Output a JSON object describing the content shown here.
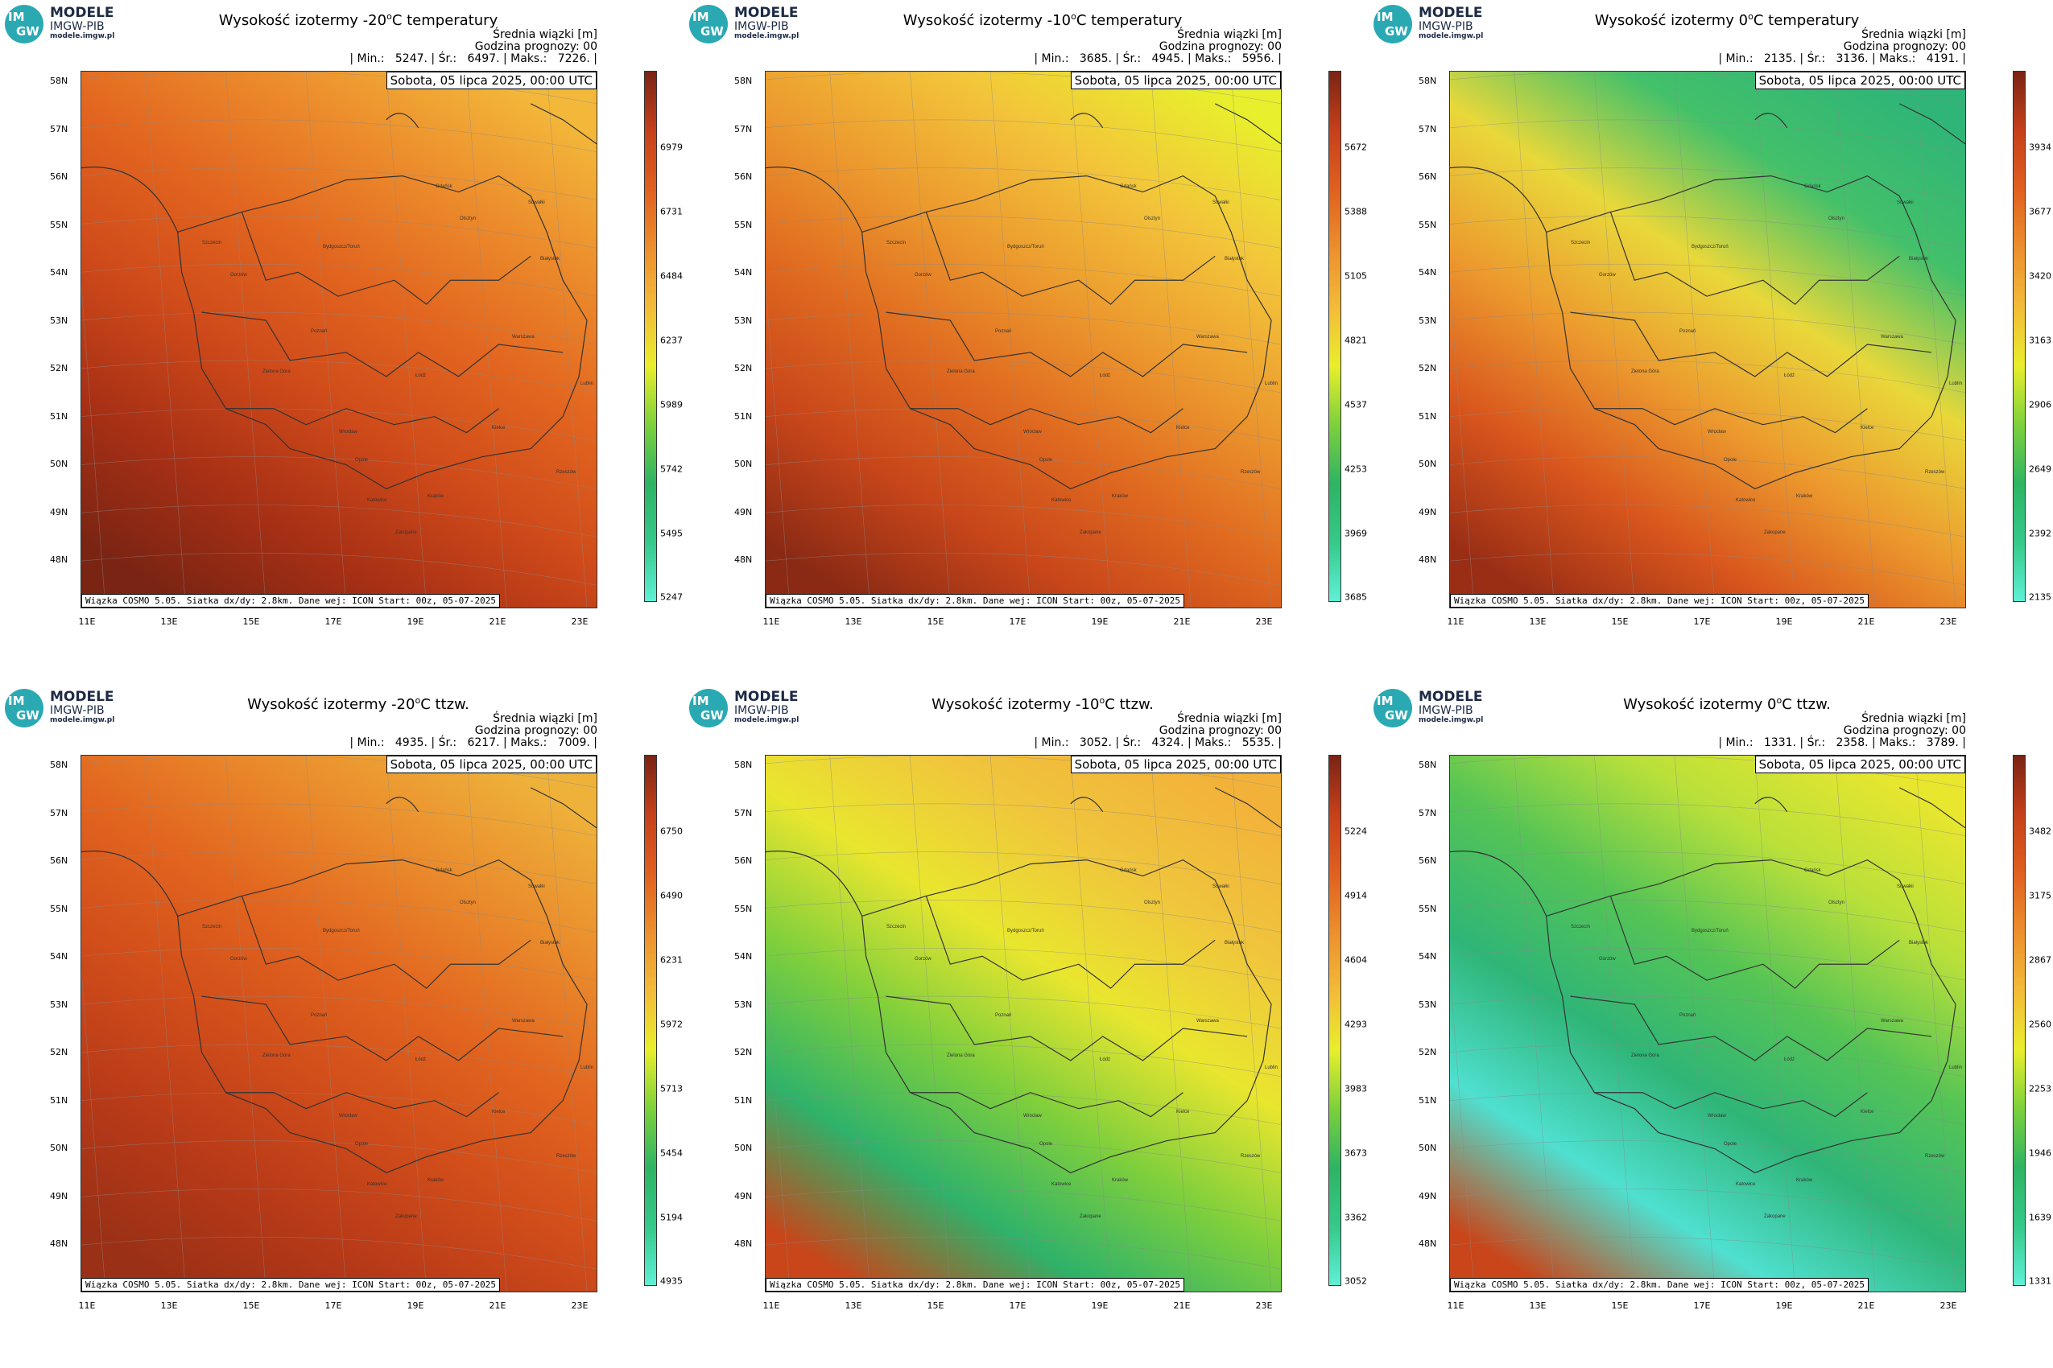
{
  "logo": {
    "circle_top": "IM",
    "circle_bottom": "GW",
    "line1": "MODELE",
    "line2": "IMGW-PIB",
    "line3": "modele.imgw.pl"
  },
  "common": {
    "mean_label": "Średnia wiązki [m]",
    "forecast_label": "Godzina prognozy: 00",
    "date": "Sobota, 05 lipca 2025, 00:00 UTC",
    "footer": "Wiązka COSMO 5.05. Siatka dx/dy: 2.8km. Dane wej: ICON Start: 00z, 05-07-2025",
    "lat_labels": [
      "58N",
      "57N",
      "56N",
      "55N",
      "54N",
      "53N",
      "52N",
      "51N",
      "50N",
      "49N",
      "48N"
    ],
    "lon_labels": [
      "11E",
      "13E",
      "15E",
      "17E",
      "19E",
      "21E",
      "23E"
    ],
    "cities": [
      "Gdańsk",
      "Olsztyn",
      "Suwałki",
      "Szczecin",
      "Bydgoszcz/Toruń",
      "Białystok",
      "Gorzów",
      "Poznań",
      "Warszawa",
      "Zielona Góra",
      "Łódź",
      "Lublin",
      "Wrocław",
      "Kielce",
      "Opole",
      "Katowice",
      "Kraków",
      "Rzeszów",
      "Zakopane"
    ]
  },
  "panels": [
    {
      "title_pre": "Wysokość izotermy -20",
      "title_sup": "o",
      "title_post": "C temperatury",
      "stats": "| Min.:   5247. | Śr.:   6497. | Maks.:   7226. |",
      "ticks": [
        "6979",
        "6731",
        "6484",
        "6237",
        "5989",
        "5742",
        "5495",
        "5247"
      ],
      "scheme": "warm",
      "colors": [
        "#f3b83a",
        "#ec8c2c",
        "#e2651f",
        "#cf4a1a",
        "#a83015",
        "#7a2414"
      ]
    },
    {
      "title_pre": "Wysokość izotermy -10",
      "title_sup": "o",
      "title_post": "C temperatury",
      "stats": "| Min.:   3685. | Śr.:   4945. | Maks.:   5956. |",
      "ticks": [
        "5672",
        "5388",
        "5105",
        "4821",
        "4537",
        "4253",
        "3969",
        "3685"
      ],
      "scheme": "mid",
      "colors": [
        "#e8ef2c",
        "#f3c43a",
        "#ec9a2e",
        "#e06a20",
        "#c8461a",
        "#8a2a14"
      ]
    },
    {
      "title_pre": "Wysokość izotermy 0",
      "title_sup": "o",
      "title_post": "C temperatury",
      "stats": "| Min.:   2135. | Śr.:   3136. | Maks.:   4191. |",
      "ticks": [
        "3934",
        "3677",
        "3420",
        "3163",
        "2906",
        "2649",
        "2392",
        "2135"
      ],
      "scheme": "cool",
      "colors": [
        "#2fb577",
        "#43c06a",
        "#e9d83a",
        "#ec9a2e",
        "#d9561d",
        "#9a2e15"
      ]
    },
    {
      "title_pre": "Wysokość izotermy -20",
      "title_sup": "o",
      "title_post": "C ttzw.",
      "stats": "| Min.:   4935. | Śr.:   6217. | Maks.:   7009. |",
      "ticks": [
        "6750",
        "6490",
        "6231",
        "5972",
        "5713",
        "5454",
        "5194",
        "4935"
      ],
      "scheme": "warm2",
      "colors": [
        "#eeb23a",
        "#ea8c2c",
        "#e2651f",
        "#d14d1a",
        "#b83a18",
        "#9a3016"
      ]
    },
    {
      "title_pre": "Wysokość izotermy -10",
      "title_sup": "o",
      "title_post": "C ttzw.",
      "stats": "| Min.:   3052. | Śr.:   4324. | Maks.:   5535. |",
      "ticks": [
        "5224",
        "4914",
        "4604",
        "4293",
        "3983",
        "3673",
        "3362",
        "3052"
      ],
      "scheme": "mid2",
      "colors": [
        "#f2b23a",
        "#f0c53c",
        "#e9e62e",
        "#7fcf3c",
        "#2fb26a",
        "#c8461a"
      ]
    },
    {
      "title_pre": "Wysokość izotermy 0",
      "title_sup": "o",
      "title_post": "C ttzw.",
      "stats": "| Min.:   1331. | Śr.:   2358. | Maks.:   3789. |",
      "ticks": [
        "3482",
        "3175",
        "2867",
        "2560",
        "2253",
        "1946",
        "1639",
        "1331"
      ],
      "scheme": "cool2",
      "colors": [
        "#e9e62e",
        "#b9e03a",
        "#55c455",
        "#2fb577",
        "#4fe0d0",
        "#c8461a"
      ]
    }
  ]
}
